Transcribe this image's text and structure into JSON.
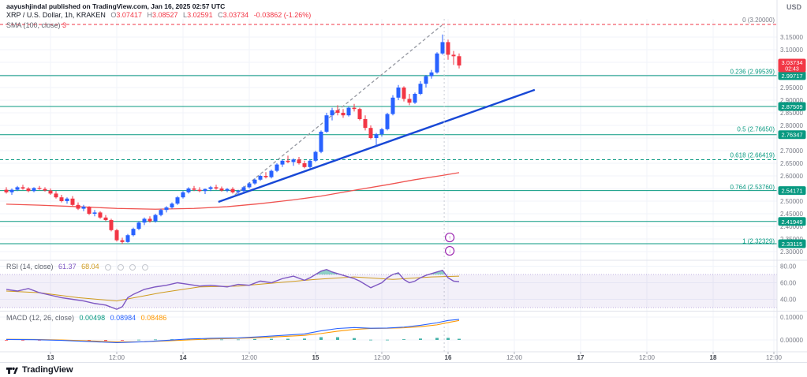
{
  "attribution": "aayushjindal published on TradingView.com, Jan 16, 2025 02:57 UTC",
  "legend": {
    "symbol": "XRP / U.S. Dollar, 1h, KRAKEN",
    "o_label": "O",
    "open": "3.07417",
    "h_label": "H",
    "high": "3.08527",
    "l_label": "L",
    "low": "3.02591",
    "c_label": "C",
    "close": "3.03734",
    "change": "-0.03862 (-1.26%)"
  },
  "legend_sma": {
    "label": "SMA (100, close)",
    "value": "3"
  },
  "legend_rsi": {
    "label": "RSI (14, close)",
    "value": "61.37",
    "ma_value": "68.04"
  },
  "legend_macd": {
    "label": "MACD (12, 26, close)",
    "hist": "0.00498",
    "macd": "0.08984",
    "signal": "0.08486"
  },
  "footer": {
    "brand": "TradingView"
  },
  "price_axis": {
    "currency": "USD",
    "ticks": [
      {
        "v": 3.15,
        "label": "3.15000"
      },
      {
        "v": 3.1,
        "label": "3.10000"
      },
      {
        "v": 2.95,
        "label": "2.95000"
      },
      {
        "v": 2.9,
        "label": "2.90000"
      },
      {
        "v": 2.85,
        "label": "2.85000"
      },
      {
        "v": 2.8,
        "label": "2.80000"
      },
      {
        "v": 2.7,
        "label": "2.70000"
      },
      {
        "v": 2.65,
        "label": "2.65000"
      },
      {
        "v": 2.6,
        "label": "2.60000"
      },
      {
        "v": 2.5,
        "label": "2.50000"
      },
      {
        "v": 2.45,
        "label": "2.45000"
      },
      {
        "v": 2.4,
        "label": "2.40000"
      },
      {
        "v": 2.35,
        "label": "2.35000"
      },
      {
        "v": 2.3,
        "label": "2.30000"
      }
    ],
    "badges": [
      {
        "v": 2.99717,
        "label": "2.99717"
      },
      {
        "v": 2.87509,
        "label": "2.87509"
      },
      {
        "v": 2.76347,
        "label": "2.76347"
      },
      {
        "v": 2.54171,
        "label": "2.54171"
      },
      {
        "v": 2.41949,
        "label": "2.41949"
      },
      {
        "v": 2.33115,
        "label": "2.33115"
      }
    ],
    "last": {
      "v": 3.03734,
      "label": "3.03734",
      "countdown": "02:43"
    }
  },
  "rsi_axis": [
    {
      "v": 80,
      "label": "80.00"
    },
    {
      "v": 60,
      "label": "60.00"
    },
    {
      "v": 40,
      "label": "40.00"
    }
  ],
  "macd_axis": [
    {
      "v": 0.1,
      "label": "0.10000"
    },
    {
      "v": 0,
      "label": "0.00000"
    }
  ],
  "time_axis": [
    {
      "idx": 8,
      "label": "13",
      "major": true
    },
    {
      "idx": 20,
      "label": "12:00",
      "major": false
    },
    {
      "idx": 32,
      "label": "14",
      "major": true
    },
    {
      "idx": 44,
      "label": "12:00",
      "major": false
    },
    {
      "idx": 56,
      "label": "15",
      "major": true
    },
    {
      "idx": 68,
      "label": "12:00",
      "major": false
    },
    {
      "idx": 80,
      "label": "16",
      "major": true
    },
    {
      "idx": 92,
      "label": "12:00",
      "major": false
    },
    {
      "idx": 104,
      "label": "17",
      "major": true
    },
    {
      "idx": 116,
      "label": "12:00",
      "major": false
    },
    {
      "idx": 128,
      "label": "18",
      "major": true
    },
    {
      "idx": 139,
      "label": "12:00",
      "major": false
    }
  ],
  "chart_data": {
    "type": "candlestick",
    "title": "XRP / U.S. Dollar",
    "symbol": "XRP/USD",
    "exchange": "KRAKEN",
    "interval": "1h",
    "ylim": [
      2.2656,
      3.2219
    ],
    "grid": true,
    "style": {
      "up_color": "#2962ff",
      "down_color": "#f23645",
      "sma_color": "#ef5350",
      "rsi_color": "#7e57c2",
      "rsi_ma_color": "#cf9b1d",
      "macd_color": "#2962ff",
      "signal_color": "#ff9800",
      "hist_up": "#26a69a",
      "hist_down": "#f23645",
      "level_color": "#089981"
    },
    "candles": [
      [
        2.545,
        2.555,
        2.53,
        2.535
      ],
      [
        2.535,
        2.55,
        2.525,
        2.545
      ],
      [
        2.545,
        2.56,
        2.54,
        2.555
      ],
      [
        2.555,
        2.565,
        2.545,
        2.55
      ],
      [
        2.55,
        2.555,
        2.535,
        2.54
      ],
      [
        2.54,
        2.555,
        2.535,
        2.552
      ],
      [
        2.552,
        2.56,
        2.545,
        2.548
      ],
      [
        2.548,
        2.555,
        2.538,
        2.542
      ],
      [
        2.542,
        2.55,
        2.525,
        2.53
      ],
      [
        2.53,
        2.54,
        2.51,
        2.515
      ],
      [
        2.515,
        2.525,
        2.495,
        2.5
      ],
      [
        2.5,
        2.515,
        2.49,
        2.51
      ],
      [
        2.51,
        2.52,
        2.48,
        2.485
      ],
      [
        2.485,
        2.495,
        2.465,
        2.47
      ],
      [
        2.47,
        2.485,
        2.46,
        2.478
      ],
      [
        2.478,
        2.48,
        2.445,
        2.45
      ],
      [
        2.45,
        2.465,
        2.44,
        2.455
      ],
      [
        2.455,
        2.46,
        2.43,
        2.435
      ],
      [
        2.435,
        2.445,
        2.42,
        2.425
      ],
      [
        2.425,
        2.43,
        2.38,
        2.385
      ],
      [
        2.385,
        2.39,
        2.34,
        2.345
      ],
      [
        2.345,
        2.355,
        2.33,
        2.338
      ],
      [
        2.338,
        2.37,
        2.335,
        2.365
      ],
      [
        2.365,
        2.395,
        2.36,
        2.39
      ],
      [
        2.39,
        2.42,
        2.385,
        2.415
      ],
      [
        2.415,
        2.435,
        2.405,
        2.43
      ],
      [
        2.43,
        2.44,
        2.415,
        2.42
      ],
      [
        2.42,
        2.45,
        2.415,
        2.445
      ],
      [
        2.445,
        2.47,
        2.44,
        2.465
      ],
      [
        2.465,
        2.48,
        2.455,
        2.475
      ],
      [
        2.475,
        2.495,
        2.47,
        2.49
      ],
      [
        2.49,
        2.52,
        2.485,
        2.515
      ],
      [
        2.515,
        2.54,
        2.51,
        2.535
      ],
      [
        2.535,
        2.555,
        2.53,
        2.55
      ],
      [
        2.55,
        2.56,
        2.54,
        2.545
      ],
      [
        2.545,
        2.555,
        2.535,
        2.54
      ],
      [
        2.54,
        2.55,
        2.528,
        2.548
      ],
      [
        2.548,
        2.56,
        2.54,
        2.555
      ],
      [
        2.555,
        2.565,
        2.545,
        2.55
      ],
      [
        2.55,
        2.558,
        2.538,
        2.542
      ],
      [
        2.542,
        2.552,
        2.535,
        2.548
      ],
      [
        2.548,
        2.555,
        2.53,
        2.535
      ],
      [
        2.535,
        2.545,
        2.525,
        2.54
      ],
      [
        2.54,
        2.56,
        2.535,
        2.555
      ],
      [
        2.555,
        2.575,
        2.55,
        2.57
      ],
      [
        2.57,
        2.59,
        2.565,
        2.585
      ],
      [
        2.585,
        2.605,
        2.58,
        2.6
      ],
      [
        2.6,
        2.615,
        2.59,
        2.595
      ],
      [
        2.595,
        2.625,
        2.59,
        2.62
      ],
      [
        2.62,
        2.65,
        2.615,
        2.645
      ],
      [
        2.645,
        2.665,
        2.635,
        2.66
      ],
      [
        2.66,
        2.68,
        2.65,
        2.655
      ],
      [
        2.655,
        2.67,
        2.64,
        2.665
      ],
      [
        2.665,
        2.675,
        2.645,
        2.65
      ],
      [
        2.65,
        2.66,
        2.63,
        2.635
      ],
      [
        2.635,
        2.665,
        2.63,
        2.66
      ],
      [
        2.66,
        2.7,
        2.655,
        2.695
      ],
      [
        2.695,
        2.78,
        2.69,
        2.775
      ],
      [
        2.775,
        2.85,
        2.77,
        2.84
      ],
      [
        2.84,
        2.87,
        2.82,
        2.86
      ],
      [
        2.86,
        2.88,
        2.84,
        2.85
      ],
      [
        2.85,
        2.865,
        2.83,
        2.84
      ],
      [
        2.84,
        2.875,
        2.835,
        2.87
      ],
      [
        2.87,
        2.885,
        2.855,
        2.865
      ],
      [
        2.865,
        2.87,
        2.82,
        2.825
      ],
      [
        2.825,
        2.84,
        2.78,
        2.79
      ],
      [
        2.79,
        2.8,
        2.745,
        2.75
      ],
      [
        2.75,
        2.77,
        2.72,
        2.765
      ],
      [
        2.765,
        2.79,
        2.755,
        2.785
      ],
      [
        2.785,
        2.85,
        2.78,
        2.845
      ],
      [
        2.845,
        2.92,
        2.84,
        2.91
      ],
      [
        2.91,
        2.96,
        2.9,
        2.95
      ],
      [
        2.95,
        2.955,
        2.895,
        2.905
      ],
      [
        2.905,
        2.925,
        2.88,
        2.89
      ],
      [
        2.89,
        2.93,
        2.885,
        2.925
      ],
      [
        2.925,
        2.975,
        2.92,
        2.965
      ],
      [
        2.965,
        3.0,
        2.95,
        2.995
      ],
      [
        2.995,
        3.02,
        2.985,
        3.01
      ],
      [
        3.01,
        3.09,
        3.005,
        3.085
      ],
      [
        3.085,
        3.16,
        3.08,
        3.13
      ],
      [
        3.13,
        3.14,
        3.06,
        3.08
      ],
      [
        3.08,
        3.095,
        3.04,
        3.074
      ],
      [
        3.07417,
        3.08527,
        3.02591,
        3.03734
      ]
    ],
    "overlays": {
      "sma100": [
        [
          0,
          2.488
        ],
        [
          6,
          2.484
        ],
        [
          13,
          2.478
        ],
        [
          20,
          2.471
        ],
        [
          27,
          2.468
        ],
        [
          34,
          2.471
        ],
        [
          40,
          2.478
        ],
        [
          46,
          2.49
        ],
        [
          52,
          2.505
        ],
        [
          57,
          2.52
        ],
        [
          63,
          2.543
        ],
        [
          69,
          2.565
        ],
        [
          74,
          2.585
        ],
        [
          79,
          2.602
        ],
        [
          82,
          2.613
        ]
      ],
      "trendlines": [
        {
          "name": "support-trendline",
          "color": "#1848d6",
          "width": 2.4,
          "dash": "",
          "from": [
            38.4,
            2.497
          ],
          "to": [
            95.7,
            2.941
          ]
        },
        {
          "name": "dashed-channel",
          "color": "#9598a1",
          "width": 1.3,
          "dash": "4,3",
          "from": [
            41.4,
            2.525
          ],
          "to": [
            78.9,
            3.197
          ]
        }
      ],
      "vline_idx": 79.3,
      "levels": [
        2.99717,
        2.87509,
        2.76347,
        2.54171,
        2.41949,
        2.33115
      ],
      "fib": [
        {
          "label": "0 (3.20000)",
          "value": 3.2,
          "style": "zero"
        },
        {
          "label": "0.236 (2.99539)",
          "value": 2.99539,
          "style": "fib"
        },
        {
          "label": "0.5 (2.76650)",
          "value": 2.7665,
          "style": "fib"
        },
        {
          "label": "0.618 (2.66419)",
          "value": 2.66419,
          "style": "fib-dashed"
        },
        {
          "label": "0.764 (2.53760)",
          "value": 2.5376,
          "style": "fib"
        },
        {
          "label": "1 (2.32329)",
          "value": 2.32329,
          "style": "fib"
        }
      ],
      "markers": [
        {
          "idx": 80.3,
          "price": 2.356,
          "glyph": "↑"
        },
        {
          "idx": 80.3,
          "price": 2.303,
          "glyph": "↓"
        }
      ]
    },
    "rsi": {
      "band": [
        70,
        30
      ],
      "overbought_fill": "rgba(8,153,129,0.45)",
      "values": [
        [
          0,
          52
        ],
        [
          2,
          50
        ],
        [
          4,
          53
        ],
        [
          6,
          48
        ],
        [
          8,
          45
        ],
        [
          10,
          42
        ],
        [
          12,
          40
        ],
        [
          14,
          38
        ],
        [
          16,
          35
        ],
        [
          18,
          33
        ],
        [
          20,
          28
        ],
        [
          21,
          31
        ],
        [
          22,
          42
        ],
        [
          23,
          46
        ],
        [
          25,
          52
        ],
        [
          27,
          55
        ],
        [
          29,
          57
        ],
        [
          31,
          60
        ],
        [
          33,
          58
        ],
        [
          35,
          56
        ],
        [
          37,
          57
        ],
        [
          40,
          55
        ],
        [
          42,
          58
        ],
        [
          44,
          57
        ],
        [
          46,
          62
        ],
        [
          48,
          60
        ],
        [
          50,
          65
        ],
        [
          52,
          68
        ],
        [
          54,
          63
        ],
        [
          55,
          66
        ],
        [
          56,
          70
        ],
        [
          57,
          74
        ],
        [
          58,
          76
        ],
        [
          59,
          73
        ],
        [
          60,
          71
        ],
        [
          62,
          67
        ],
        [
          63,
          65
        ],
        [
          64,
          62
        ],
        [
          65,
          58
        ],
        [
          66,
          54
        ],
        [
          67,
          57
        ],
        [
          68,
          60
        ],
        [
          69,
          66
        ],
        [
          70,
          70
        ],
        [
          71,
          72
        ],
        [
          72,
          64
        ],
        [
          73,
          60
        ],
        [
          74,
          62
        ],
        [
          75,
          66
        ],
        [
          76,
          69
        ],
        [
          78,
          73
        ],
        [
          79,
          75
        ],
        [
          80,
          66
        ],
        [
          81,
          62
        ],
        [
          82,
          61.4
        ]
      ],
      "ma": [
        [
          0,
          50
        ],
        [
          6,
          48
        ],
        [
          13,
          42
        ],
        [
          20,
          38
        ],
        [
          28,
          48
        ],
        [
          35,
          55
        ],
        [
          42,
          56
        ],
        [
          49,
          60
        ],
        [
          56,
          64
        ],
        [
          63,
          67
        ],
        [
          70,
          64
        ],
        [
          77,
          67
        ],
        [
          82,
          68
        ]
      ]
    },
    "macd": {
      "macd": [
        [
          0,
          0.002
        ],
        [
          5,
          0.001
        ],
        [
          10,
          -0.002
        ],
        [
          16,
          -0.008
        ],
        [
          20,
          -0.012
        ],
        [
          25,
          -0.008
        ],
        [
          29,
          -0.002
        ],
        [
          33,
          0.004
        ],
        [
          37,
          0.007
        ],
        [
          42,
          0.009
        ],
        [
          46,
          0.014
        ],
        [
          50,
          0.02
        ],
        [
          54,
          0.026
        ],
        [
          57,
          0.04
        ],
        [
          60,
          0.05
        ],
        [
          63,
          0.054
        ],
        [
          66,
          0.051
        ],
        [
          69,
          0.052
        ],
        [
          72,
          0.056
        ],
        [
          75,
          0.064
        ],
        [
          78,
          0.075
        ],
        [
          80,
          0.085
        ],
        [
          82,
          0.0898
        ]
      ],
      "signal": [
        [
          0,
          0.003
        ],
        [
          5,
          0.002
        ],
        [
          10,
          0
        ],
        [
          16,
          -0.005
        ],
        [
          20,
          -0.009
        ],
        [
          25,
          -0.008
        ],
        [
          29,
          -0.004
        ],
        [
          33,
          0
        ],
        [
          37,
          0.004
        ],
        [
          42,
          0.007
        ],
        [
          46,
          0.01
        ],
        [
          50,
          0.015
        ],
        [
          54,
          0.02
        ],
        [
          57,
          0.028
        ],
        [
          60,
          0.038
        ],
        [
          63,
          0.046
        ],
        [
          66,
          0.05
        ],
        [
          69,
          0.051
        ],
        [
          72,
          0.053
        ],
        [
          75,
          0.058
        ],
        [
          78,
          0.066
        ],
        [
          80,
          0.076
        ],
        [
          82,
          0.0849
        ]
      ],
      "hist": [
        [
          0,
          -0.001
        ],
        [
          3,
          -0.001
        ],
        [
          6,
          -0.002
        ],
        [
          9,
          -0.002
        ],
        [
          12,
          -0.003
        ],
        [
          15,
          -0.003
        ],
        [
          18,
          -0.004
        ],
        [
          21,
          -0.003
        ],
        [
          24,
          0.001
        ],
        [
          27,
          0.002
        ],
        [
          30,
          0.003
        ],
        [
          33,
          0.004
        ],
        [
          36,
          0.003
        ],
        [
          39,
          0.002
        ],
        [
          42,
          0.002
        ],
        [
          45,
          0.004
        ],
        [
          48,
          0.005
        ],
        [
          51,
          0.005
        ],
        [
          54,
          0.006
        ],
        [
          57,
          0.012
        ],
        [
          60,
          0.012
        ],
        [
          63,
          0.008
        ],
        [
          66,
          0.001
        ],
        [
          69,
          0.001
        ],
        [
          72,
          0.003
        ],
        [
          75,
          0.006
        ],
        [
          78,
          0.009
        ],
        [
          80,
          0.009
        ],
        [
          82,
          0.005
        ]
      ]
    }
  }
}
